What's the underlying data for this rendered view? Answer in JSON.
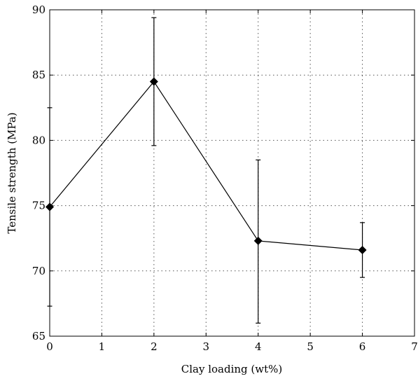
{
  "chart_data": {
    "type": "line",
    "xlabel": "Clay loading (wt%)",
    "ylabel": "Tensile strength (MPa)",
    "xlim": [
      0,
      7
    ],
    "ylim": [
      65,
      90
    ],
    "x_ticks": [
      0,
      1,
      2,
      3,
      4,
      5,
      6,
      7
    ],
    "y_ticks": [
      65,
      70,
      75,
      80,
      85,
      90
    ],
    "grid": true,
    "series": [
      {
        "marker": "diamond",
        "color": "#000000",
        "points": [
          {
            "x": 0,
            "y": 74.9,
            "err_low": 67.3,
            "err_high": 82.5
          },
          {
            "x": 2,
            "y": 84.5,
            "err_low": 79.6,
            "err_high": 89.4
          },
          {
            "x": 4,
            "y": 72.3,
            "err_low": 66.0,
            "err_high": 78.5
          },
          {
            "x": 6,
            "y": 71.6,
            "err_low": 69.5,
            "err_high": 73.7
          }
        ]
      }
    ]
  }
}
